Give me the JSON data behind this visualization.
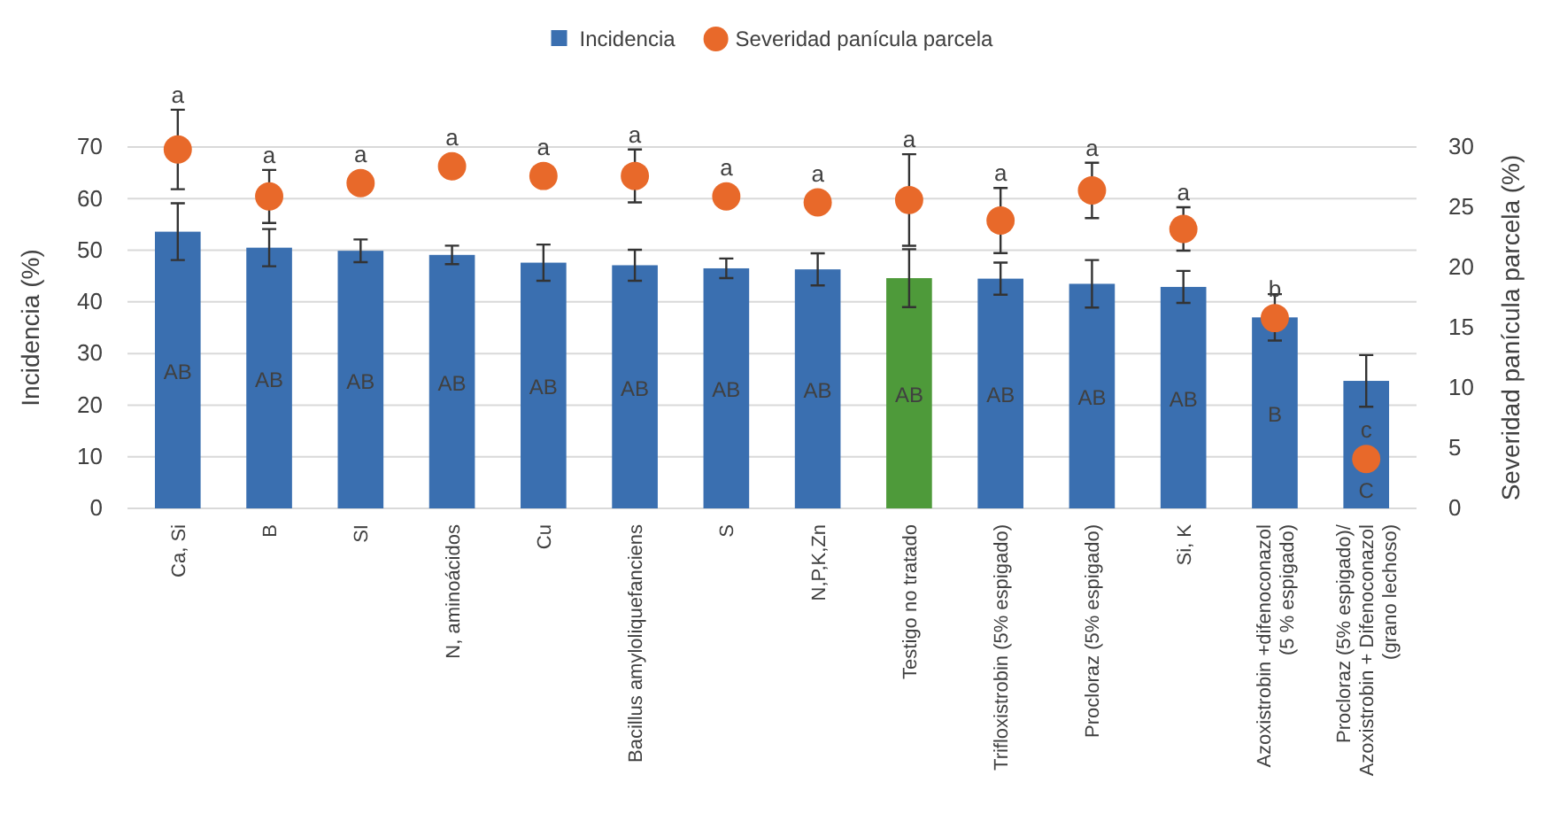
{
  "chart_data": {
    "type": "bar",
    "ylabel": "Incidencia (%)",
    "y2label": "Severidad panícula parcela (%)",
    "categories": [
      "Ca, Si",
      "B",
      "SI",
      "N, aminoácidos",
      "Cu",
      "Bacillus amyloliquefanciens",
      "S",
      "N,P,K,Zn",
      "Testigo no tratado",
      "Trifloxistrobin (5% espigado)",
      "Procloraz (5% espigado)",
      "Si, K",
      "Azoxistrobin +difenoconazol\n(5 % espigado)",
      "Procloraz (5% espigado)/\nAzoxistrobin + Difenoconazol\n(grano lechoso)"
    ],
    "series": [
      {
        "name": "Incidencia",
        "type": "bar",
        "color": "#3a6fb0",
        "colors": [
          "#3a6fb0",
          "#3a6fb0",
          "#3a6fb0",
          "#3a6fb0",
          "#3a6fb0",
          "#3a6fb0",
          "#3a6fb0",
          "#3a6fb0",
          "#4e9a3a",
          "#3a6fb0",
          "#3a6fb0",
          "#3a6fb0",
          "#3a6fb0",
          "#3a6fb0"
        ],
        "values": [
          53.6,
          50.5,
          49.9,
          49.1,
          47.6,
          47.1,
          46.5,
          46.3,
          44.6,
          44.5,
          43.5,
          42.9,
          37,
          24.7
        ],
        "errors": [
          5.5,
          3.6,
          2.2,
          1.8,
          3.5,
          3,
          1.9,
          3.1,
          5.6,
          3.1,
          4.6,
          3.1,
          4.5,
          5
        ],
        "value_labels": [
          "AB",
          "AB",
          "AB",
          "AB",
          "AB",
          "AB",
          "AB",
          "AB",
          "AB",
          "AB",
          "AB",
          "AB",
          "B",
          "C"
        ]
      },
      {
        "name": "Severidad panícula parcela",
        "type": "scatter",
        "axis": "y2",
        "marker": "circle",
        "color": "#e8692a",
        "values": [
          29.8,
          25.9,
          27,
          28.4,
          27.6,
          27.6,
          25.9,
          25.4,
          25.6,
          23.9,
          26.4,
          23.2,
          15.8,
          4.1
        ],
        "errors": [
          3.3,
          2.2,
          null,
          null,
          null,
          2.2,
          null,
          null,
          3.8,
          2.7,
          2.3,
          1.8,
          null,
          null
        ],
        "value_labels": [
          "a",
          "a",
          "a",
          "a",
          "a",
          "a",
          "a",
          "a",
          "a",
          "a",
          "a",
          "a",
          "b",
          "c"
        ]
      }
    ],
    "ylim": [
      0,
      70
    ],
    "yticks": [
      0,
      10,
      20,
      30,
      40,
      50,
      60,
      70
    ],
    "y2lim": [
      0,
      30
    ],
    "y2ticks": [
      0,
      5,
      10,
      15,
      20,
      25,
      30
    ],
    "grid": "y",
    "legend": "top"
  }
}
